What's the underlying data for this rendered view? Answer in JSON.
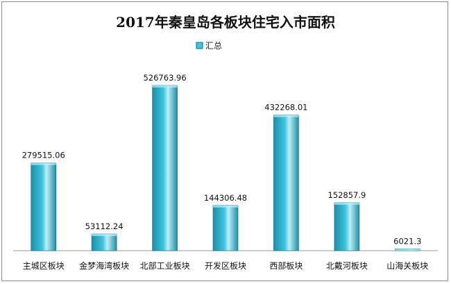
{
  "chart_data": {
    "type": "bar",
    "title": "2017年秦皇岛各板块住宅入市面积",
    "legend_position": "top-center",
    "grid": false,
    "categories": [
      "主城区板块",
      "金梦海湾板块",
      "北部工业板块",
      "开发区板块",
      "西部板块",
      "北戴河板块",
      "山海关板块"
    ],
    "series": [
      {
        "name": "汇总",
        "values": [
          279515.06,
          53112.24,
          526763.96,
          144306.48,
          432268.01,
          152857.9,
          6021.3
        ],
        "labels": [
          "279515.06",
          "53112.24",
          "526763.96",
          "144306.48",
          "432268.01",
          "152857.9",
          "6021.3"
        ]
      }
    ],
    "ylim": [
      0,
      560000
    ],
    "colors": {
      "bar_dark": "#1d8fa8",
      "bar_mid": "#3ec4e0",
      "bar_light": "#bfeef8",
      "bar_outline": "#0f6f85"
    }
  }
}
